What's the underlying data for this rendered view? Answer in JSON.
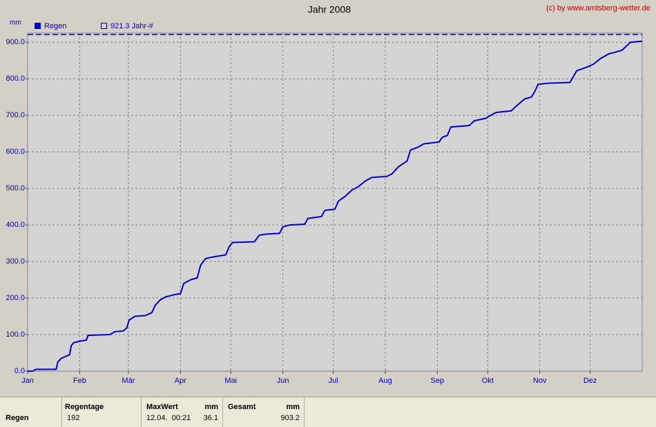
{
  "chart_data": {
    "type": "line",
    "title": "Jahr 2008",
    "credit": "(c) by www.amtsberg-wetter.de",
    "y_label": "mm",
    "x": [
      0,
      3,
      5,
      17,
      18,
      20,
      25,
      26,
      27.5,
      31,
      35,
      36,
      49,
      52,
      57,
      59,
      60.5,
      64,
      70,
      74,
      76,
      79,
      82,
      88,
      91,
      93,
      97,
      101,
      103,
      106,
      111,
      118,
      120,
      122,
      135,
      138,
      142,
      150,
      152,
      156,
      165,
      167,
      175,
      177,
      183,
      185,
      189,
      193,
      197,
      201,
      205,
      214,
      217,
      221,
      226,
      228,
      232,
      236,
      245,
      247,
      250,
      252,
      263,
      266,
      273,
      275,
      279,
      288,
      291,
      296,
      300,
      302,
      304,
      310,
      323,
      327,
      333,
      337,
      341,
      346,
      354,
      359,
      366
    ],
    "series": [
      {
        "name": "Regen",
        "color": "#0000d0",
        "values": [
          0,
          0,
          5,
          5,
          25,
          35,
          45,
          70,
          78,
          82,
          85,
          98,
          100,
          108,
          110,
          118,
          140,
          150,
          152,
          160,
          180,
          195,
          203,
          210,
          212,
          240,
          250,
          255,
          290,
          308,
          313,
          318,
          340,
          352,
          354,
          372,
          375,
          377,
          395,
          400,
          402,
          418,
          423,
          440,
          443,
          465,
          478,
          495,
          505,
          520,
          530,
          533,
          540,
          560,
          575,
          605,
          612,
          622,
          627,
          640,
          645,
          668,
          672,
          685,
          692,
          698,
          708,
          712,
          725,
          745,
          750,
          765,
          785,
          788,
          790,
          822,
          832,
          840,
          855,
          868,
          878,
          900,
          903
        ]
      }
    ],
    "reference": {
      "name": "921.3 Jahr-#",
      "value": 921.3,
      "color": "#0000d0"
    },
    "xlim": [
      0,
      366
    ],
    "xticks": [
      {
        "value": 0,
        "label": "Jan"
      },
      {
        "value": 31,
        "label": "Feb"
      },
      {
        "value": 60,
        "label": "Mär"
      },
      {
        "value": 91,
        "label": "Apr"
      },
      {
        "value": 121,
        "label": "Mai"
      },
      {
        "value": 152,
        "label": "Jun"
      },
      {
        "value": 182,
        "label": "Jul"
      },
      {
        "value": 213,
        "label": "Aug"
      },
      {
        "value": 244,
        "label": "Sep"
      },
      {
        "value": 274,
        "label": "Okt"
      },
      {
        "value": 305,
        "label": "Nov"
      },
      {
        "value": 335,
        "label": "Dez"
      }
    ],
    "ylim": [
      0,
      925
    ],
    "yticks": [
      {
        "value": 0,
        "label": "0.0"
      },
      {
        "value": 100,
        "label": "100.0"
      },
      {
        "value": 200,
        "label": "200.0"
      },
      {
        "value": 300,
        "label": "300.0"
      },
      {
        "value": 400,
        "label": "400.0"
      },
      {
        "value": 500,
        "label": "500.0"
      },
      {
        "value": 600,
        "label": "600.0"
      },
      {
        "value": 700,
        "label": "700.0"
      },
      {
        "value": 800,
        "label": "800.0"
      },
      {
        "value": 900,
        "label": "900.0"
      }
    ],
    "grid": true
  },
  "table": {
    "row_label": "Regen",
    "columns": [
      {
        "header": "Regentage",
        "value": "192"
      },
      {
        "header": "MaxWert",
        "unit": "mm",
        "date": "12.04.  00:21",
        "value": "36.1"
      },
      {
        "header": "Gesamt",
        "unit": "mm",
        "value": "903.2"
      }
    ]
  }
}
